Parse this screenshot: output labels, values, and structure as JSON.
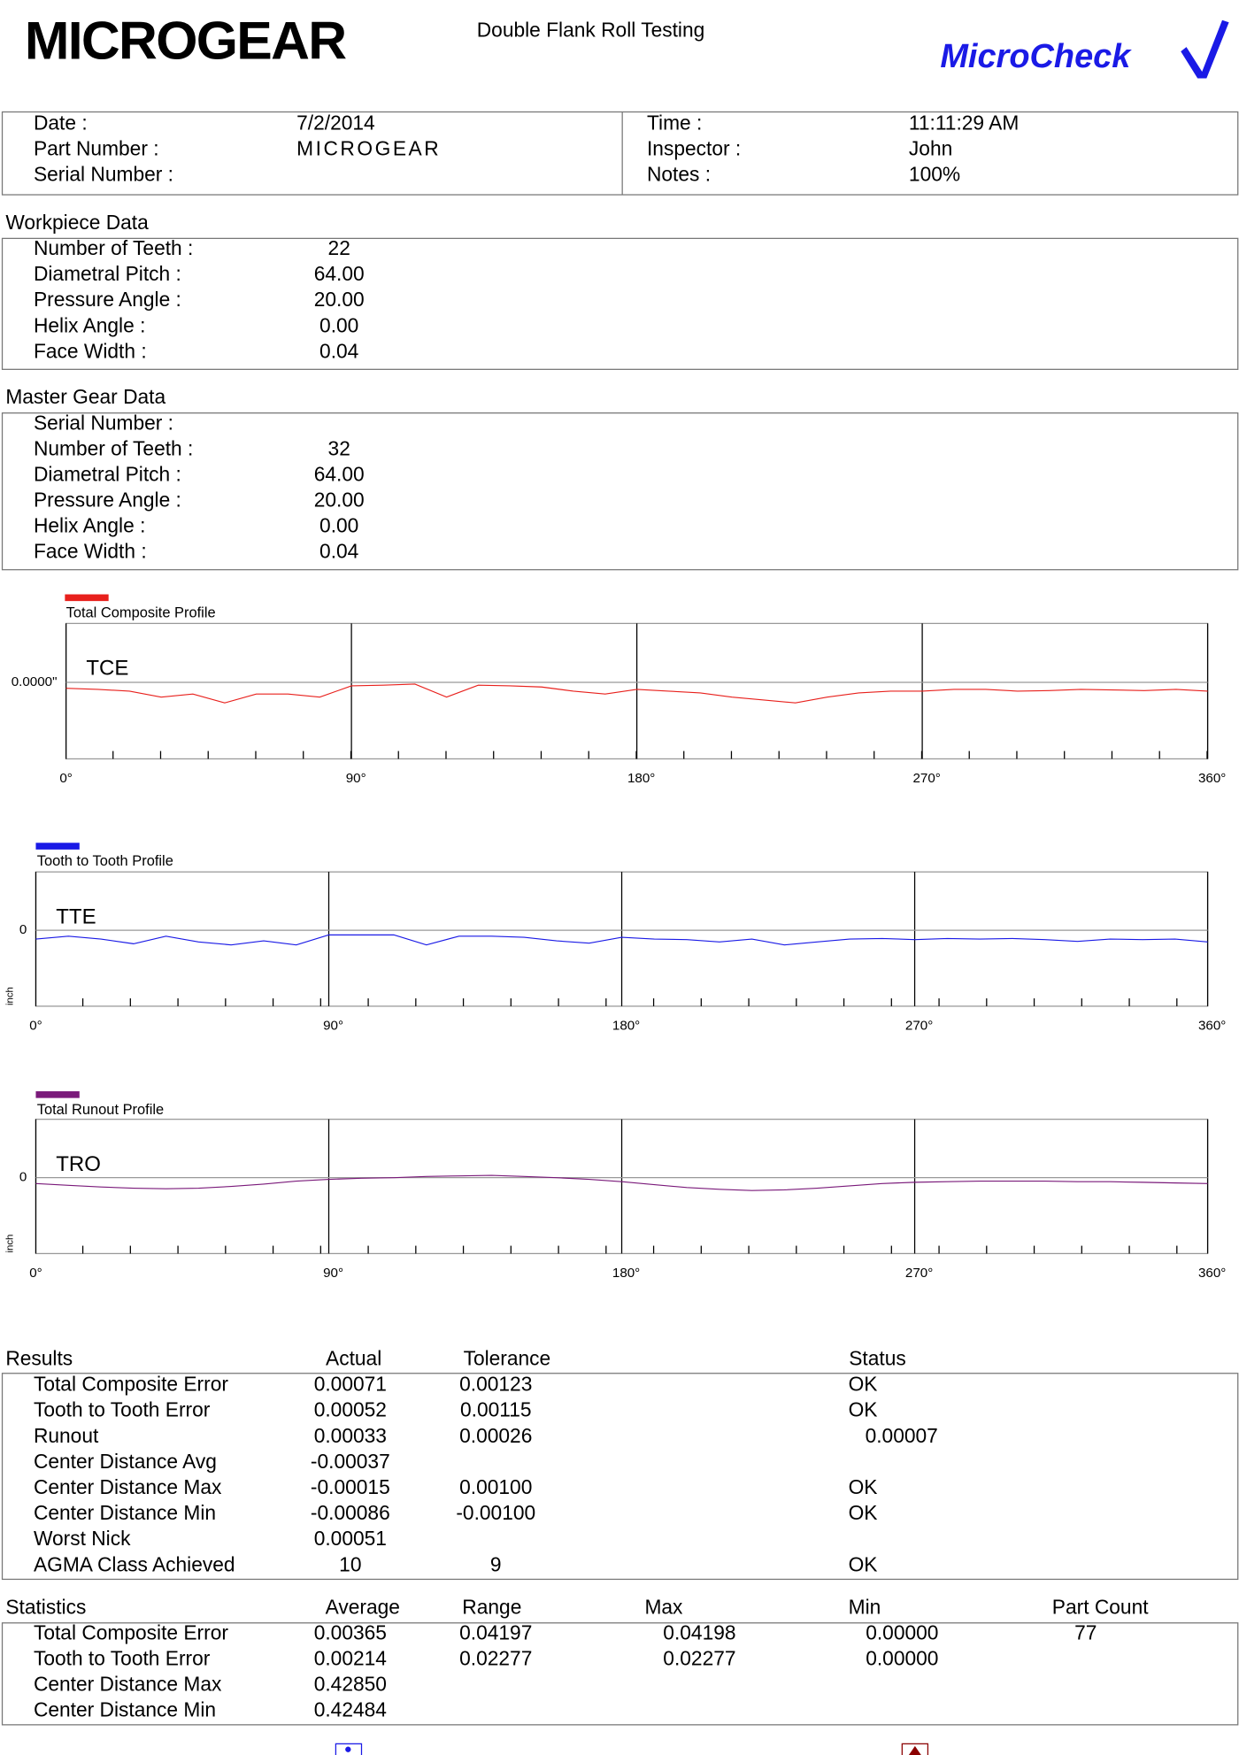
{
  "header": {
    "logo_text": "MICROGEAR",
    "title": "Double Flank Roll Testing",
    "brand": "MicroCheck"
  },
  "info": {
    "left": [
      {
        "label": "Date :",
        "value": "7/2/2014"
      },
      {
        "label": "Part Number :",
        "value": "MICROGEAR"
      },
      {
        "label": "Serial Number :"
      }
    ],
    "right": [
      {
        "label": "Time :",
        "value": "11:11:29 AM"
      },
      {
        "label": "Inspector :",
        "value": "John"
      },
      {
        "label": "Notes :",
        "value": "100%"
      }
    ]
  },
  "workpiece": {
    "title": "Workpiece Data",
    "rows": [
      {
        "label": "Number of Teeth :",
        "value": "22"
      },
      {
        "label": "Diametral Pitch :",
        "value": "64.00"
      },
      {
        "label": "Pressure Angle :",
        "value": "20.00"
      },
      {
        "label": "Helix Angle :",
        "value": "0.00"
      },
      {
        "label": "Face Width :",
        "value": "0.04"
      }
    ]
  },
  "master": {
    "title": "Master Gear Data",
    "rows": [
      {
        "label": "Serial Number :"
      },
      {
        "label": "Number of Teeth :",
        "value": "32"
      },
      {
        "label": "Diametral Pitch :",
        "value": "64.00"
      },
      {
        "label": "Pressure Angle :",
        "value": "20.00"
      },
      {
        "label": "Helix Angle :",
        "value": "0.00"
      },
      {
        "label": "Face Width :",
        "value": "0.04"
      }
    ]
  },
  "chart_data": [
    {
      "type": "line",
      "title": "Total Composite Profile",
      "annotation": "TCE",
      "color": "#e8201c",
      "x": [
        0,
        10,
        20,
        30,
        40,
        50,
        60,
        70,
        80,
        90,
        100,
        110,
        120,
        130,
        140,
        150,
        160,
        170,
        180,
        190,
        200,
        210,
        220,
        230,
        240,
        250,
        260,
        270,
        280,
        290,
        300,
        310,
        320,
        330,
        340,
        350,
        360
      ],
      "values": [
        -1,
        -1.2,
        -1.5,
        -2.5,
        -2,
        -3.5,
        -2,
        -2,
        -2.5,
        -0.6,
        -0.5,
        -0.3,
        -2.5,
        -0.5,
        -0.6,
        -0.8,
        -1.5,
        -2,
        -1.2,
        -1.5,
        -1.8,
        -2.5,
        -3,
        -3.5,
        -2.5,
        -1.8,
        -1.5,
        -1.5,
        -1.2,
        -1.2,
        -1.5,
        -1.4,
        -1.2,
        -1.3,
        -1.4,
        -1.2,
        -1.5
      ],
      "xlim": [
        0,
        360
      ],
      "xticks": [
        {
          "value": 0,
          "label": "0°"
        },
        {
          "value": 90,
          "label": "90°"
        },
        {
          "value": 180,
          "label": "180°"
        },
        {
          "value": 270,
          "label": "270°"
        },
        {
          "value": 360,
          "label": "360°"
        }
      ],
      "ylim": [
        -13,
        10
      ],
      "yticks": [
        {
          "value": 0,
          "label": "0.0000\""
        }
      ]
    },
    {
      "type": "line",
      "title": "Tooth to Tooth Profile",
      "annotation": "TTE",
      "color": "#1a1ae6",
      "y_label": "inch",
      "x": [
        0,
        10,
        20,
        30,
        40,
        50,
        60,
        70,
        80,
        90,
        100,
        110,
        120,
        130,
        140,
        150,
        160,
        170,
        180,
        190,
        200,
        210,
        220,
        230,
        240,
        250,
        260,
        270,
        280,
        290,
        300,
        310,
        320,
        330,
        340,
        350,
        360
      ],
      "values": [
        -1.5,
        -1,
        -1.5,
        -2.3,
        -1,
        -2,
        -2.5,
        -1.8,
        -2.5,
        -0.8,
        -0.8,
        -0.8,
        -2.5,
        -1,
        -1,
        -1.2,
        -1.8,
        -2.2,
        -1.2,
        -1.5,
        -1.6,
        -2,
        -1.5,
        -2.5,
        -2,
        -1.5,
        -1.4,
        -1.6,
        -1.4,
        -1.5,
        -1.4,
        -1.6,
        -1.9,
        -1.5,
        -1.6,
        -1.5,
        -2
      ],
      "xlim": [
        0,
        360
      ],
      "xticks": [
        {
          "value": 0,
          "label": "0°"
        },
        {
          "value": 90,
          "label": "90°"
        },
        {
          "value": 180,
          "label": "180°"
        },
        {
          "value": 270,
          "label": "270°"
        },
        {
          "value": 360,
          "label": "360°"
        }
      ],
      "ylim": [
        -13,
        10
      ],
      "yticks": [
        0
      ]
    },
    {
      "type": "line",
      "title": "Total Runout Profile",
      "annotation": "TRO",
      "color": "#7a1a7a",
      "y_label": "inch",
      "x": [
        0,
        10,
        20,
        30,
        40,
        50,
        60,
        70,
        80,
        90,
        100,
        110,
        120,
        130,
        140,
        150,
        160,
        170,
        180,
        190,
        200,
        210,
        220,
        230,
        240,
        250,
        260,
        270,
        280,
        290,
        300,
        310,
        320,
        330,
        340,
        350,
        360
      ],
      "values": [
        -1,
        -1.3,
        -1.6,
        -1.8,
        -1.9,
        -1.8,
        -1.5,
        -1.1,
        -0.6,
        -0.3,
        -0.1,
        0,
        0.2,
        0.3,
        0.4,
        0.2,
        0,
        -0.3,
        -0.7,
        -1.2,
        -1.7,
        -2,
        -2.2,
        -2.1,
        -1.8,
        -1.4,
        -1,
        -0.8,
        -0.7,
        -0.6,
        -0.6,
        -0.6,
        -0.7,
        -0.7,
        -0.8,
        -0.9,
        -1
      ],
      "xlim": [
        0,
        360
      ],
      "xticks": [
        {
          "value": 0,
          "label": "0°"
        },
        {
          "value": 90,
          "label": "90°"
        },
        {
          "value": 180,
          "label": "180°"
        },
        {
          "value": 270,
          "label": "270°"
        },
        {
          "value": 360,
          "label": "360°"
        }
      ],
      "ylim": [
        -13,
        10
      ],
      "yticks": [
        0
      ]
    }
  ],
  "results": {
    "title": "Results",
    "headers": [
      "Actual",
      "Tolerance",
      "Status"
    ],
    "rows": [
      {
        "label": "Total Composite Error",
        "actual": "0.00071",
        "tolerance": "0.00123",
        "status": "OK"
      },
      {
        "label": "Tooth to Tooth Error",
        "actual": "0.00052",
        "tolerance": "0.00115",
        "status": "OK"
      },
      {
        "label": "Runout",
        "actual": "0.00033",
        "tolerance": "0.00026",
        "status": "0.00007",
        "alert": true
      },
      {
        "label": "Center Distance Avg",
        "actual": "-0.00037"
      },
      {
        "label": "Center Distance Max",
        "actual": "-0.00015",
        "tolerance": "0.00100",
        "status": "OK"
      },
      {
        "label": "Center Distance Min",
        "actual": "-0.00086",
        "tolerance": "-0.00100",
        "status": "OK"
      },
      {
        "label": "Worst Nick",
        "actual": "0.00051"
      },
      {
        "label": "AGMA Class Achieved",
        "actual": "10",
        "tolerance": "9",
        "status": "OK"
      }
    ]
  },
  "statistics": {
    "title": "Statistics",
    "headers": [
      "Average",
      "Range",
      "Max",
      "Min",
      "Part Count"
    ],
    "rows": [
      {
        "label": "Total Composite Error",
        "average": "0.00365",
        "range": "0.04197",
        "max": "0.04198",
        "min": "0.00000",
        "count": "77"
      },
      {
        "label": "Tooth to Tooth Error",
        "average": "0.00214",
        "range": "0.02277",
        "max": "0.02277",
        "min": "0.00000"
      },
      {
        "label": "Center Distance Max",
        "average": "0.42850"
      },
      {
        "label": "Center Distance Min",
        "average": "0.42484"
      }
    ]
  }
}
